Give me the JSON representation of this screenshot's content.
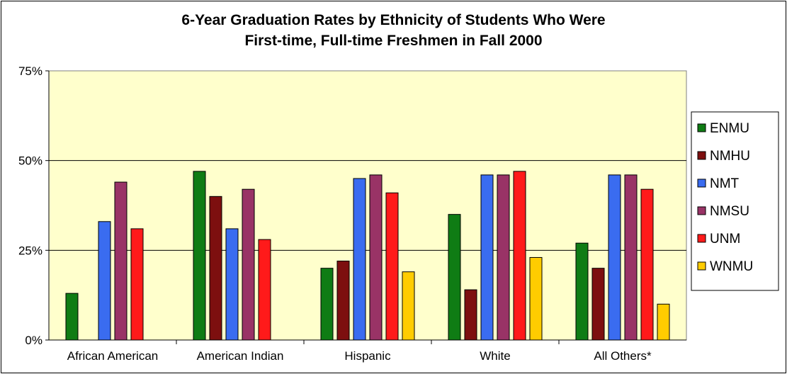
{
  "chart_data": {
    "type": "bar",
    "title_lines": [
      "6-Year Graduation Rates by Ethnicity of Students Who Were",
      "First-time, Full-time Freshmen in Fall 2000"
    ],
    "categories": [
      "African American",
      "American Indian",
      "Hispanic",
      "White",
      "All Others*"
    ],
    "y_ticks": [
      "0%",
      "25%",
      "50%",
      "75%"
    ],
    "ylim": [
      0,
      75
    ],
    "grid": true,
    "legend_position": "right",
    "plot_background": "#ffffcc",
    "series": [
      {
        "name": "ENMU",
        "color": "#0f7c14",
        "values": [
          13,
          47,
          20,
          35,
          27
        ]
      },
      {
        "name": "NMHU",
        "color": "#7d0f0f",
        "values": [
          null,
          40,
          22,
          14,
          20
        ]
      },
      {
        "name": "NMT",
        "color": "#3a6cf0",
        "values": [
          33,
          31,
          45,
          46,
          46
        ]
      },
      {
        "name": "NMSU",
        "color": "#993366",
        "values": [
          44,
          42,
          46,
          46,
          46
        ]
      },
      {
        "name": "UNM",
        "color": "#ff1a1a",
        "values": [
          31,
          28,
          41,
          47,
          42
        ]
      },
      {
        "name": "WNMU",
        "color": "#ffcc00",
        "values": [
          null,
          null,
          19,
          23,
          10
        ]
      }
    ]
  }
}
